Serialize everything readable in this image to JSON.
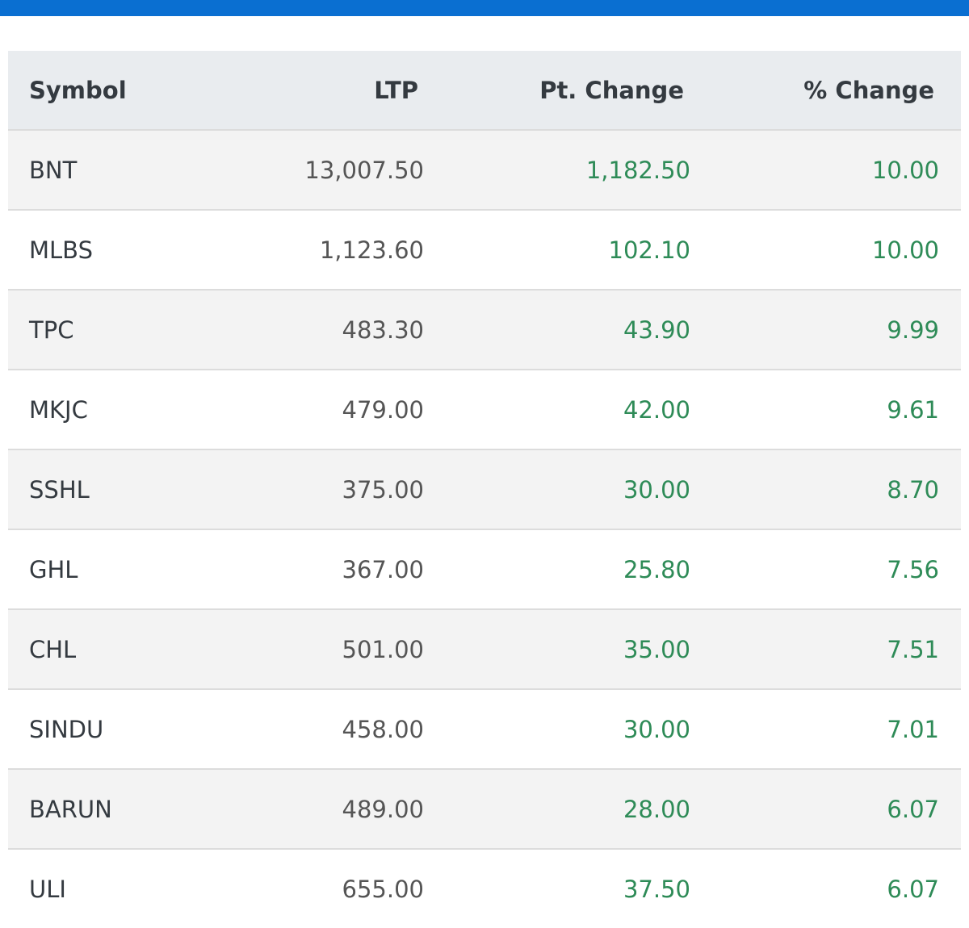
{
  "table": {
    "headers": [
      "Symbol",
      "LTP",
      "Pt. Change",
      "% Change"
    ],
    "rows": [
      [
        "BNT",
        "13,007.50",
        "1,182.50",
        "10.00"
      ],
      [
        "MLBS",
        "1,123.60",
        "102.10",
        "10.00"
      ],
      [
        "TPC",
        "483.30",
        "43.90",
        "9.99"
      ],
      [
        "MKJC",
        "479.00",
        "42.00",
        "9.61"
      ],
      [
        "SSHL",
        "375.00",
        "30.00",
        "8.70"
      ],
      [
        "GHL",
        "367.00",
        "25.80",
        "7.56"
      ],
      [
        "CHL",
        "501.00",
        "35.00",
        "7.51"
      ],
      [
        "SINDU",
        "458.00",
        "30.00",
        "7.01"
      ],
      [
        "BARUN",
        "489.00",
        "28.00",
        "6.07"
      ],
      [
        "ULI",
        "655.00",
        "37.50",
        "6.07"
      ]
    ]
  }
}
